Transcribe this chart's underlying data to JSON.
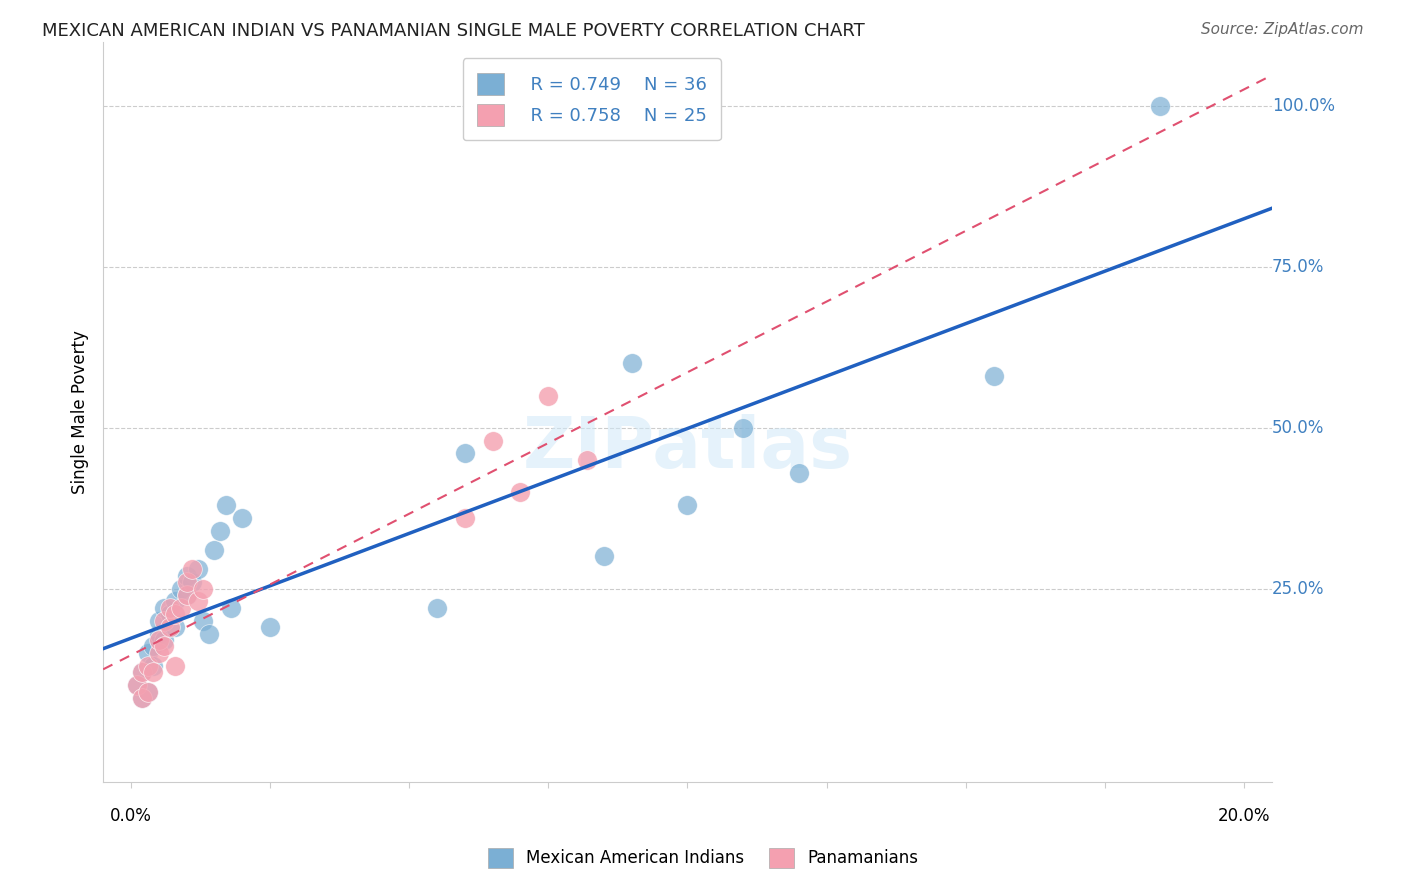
{
  "title": "MEXICAN AMERICAN INDIAN VS PANAMANIAN SINGLE MALE POVERTY CORRELATION CHART",
  "source": "Source: ZipAtlas.com",
  "ylabel": "Single Male Poverty",
  "watermark": "ZIPatlas",
  "blue_label": "Mexican American Indians",
  "pink_label": "Panamanians",
  "blue_R": "R = 0.749",
  "blue_N": "N = 36",
  "pink_R": "R = 0.758",
  "pink_N": "N = 25",
  "blue_color": "#7bafd4",
  "pink_color": "#f4a0b0",
  "blue_line_color": "#2060c0",
  "pink_line_color": "#e05070",
  "legend_text_color": "#4080c0",
  "right_axis_label_color": "#4080c0",
  "blue_points_x": [
    0.001,
    0.002,
    0.002,
    0.003,
    0.003,
    0.004,
    0.004,
    0.005,
    0.005,
    0.006,
    0.006,
    0.007,
    0.008,
    0.008,
    0.009,
    0.01,
    0.01,
    0.011,
    0.012,
    0.013,
    0.014,
    0.015,
    0.016,
    0.017,
    0.018,
    0.02,
    0.025,
    0.055,
    0.06,
    0.085,
    0.09,
    0.1,
    0.11,
    0.12,
    0.155,
    0.185
  ],
  "blue_points_y": [
    0.1,
    0.12,
    0.08,
    0.15,
    0.09,
    0.16,
    0.13,
    0.18,
    0.2,
    0.22,
    0.17,
    0.21,
    0.19,
    0.23,
    0.25,
    0.24,
    0.27,
    0.26,
    0.28,
    0.2,
    0.18,
    0.31,
    0.34,
    0.38,
    0.22,
    0.36,
    0.19,
    0.22,
    0.46,
    0.3,
    0.6,
    0.38,
    0.5,
    0.43,
    0.58,
    1.0
  ],
  "pink_points_x": [
    0.001,
    0.002,
    0.002,
    0.003,
    0.003,
    0.004,
    0.005,
    0.005,
    0.006,
    0.006,
    0.007,
    0.007,
    0.008,
    0.008,
    0.009,
    0.01,
    0.01,
    0.011,
    0.012,
    0.013,
    0.06,
    0.065,
    0.07,
    0.075,
    0.082
  ],
  "pink_points_y": [
    0.1,
    0.12,
    0.08,
    0.13,
    0.09,
    0.12,
    0.15,
    0.17,
    0.2,
    0.16,
    0.19,
    0.22,
    0.21,
    0.13,
    0.22,
    0.24,
    0.26,
    0.28,
    0.23,
    0.25,
    0.36,
    0.48,
    0.4,
    0.55,
    0.45
  ],
  "xlim": [
    -0.005,
    0.205
  ],
  "ylim": [
    -0.05,
    1.1
  ],
  "figsize": [
    14.06,
    8.92
  ],
  "dpi": 100
}
